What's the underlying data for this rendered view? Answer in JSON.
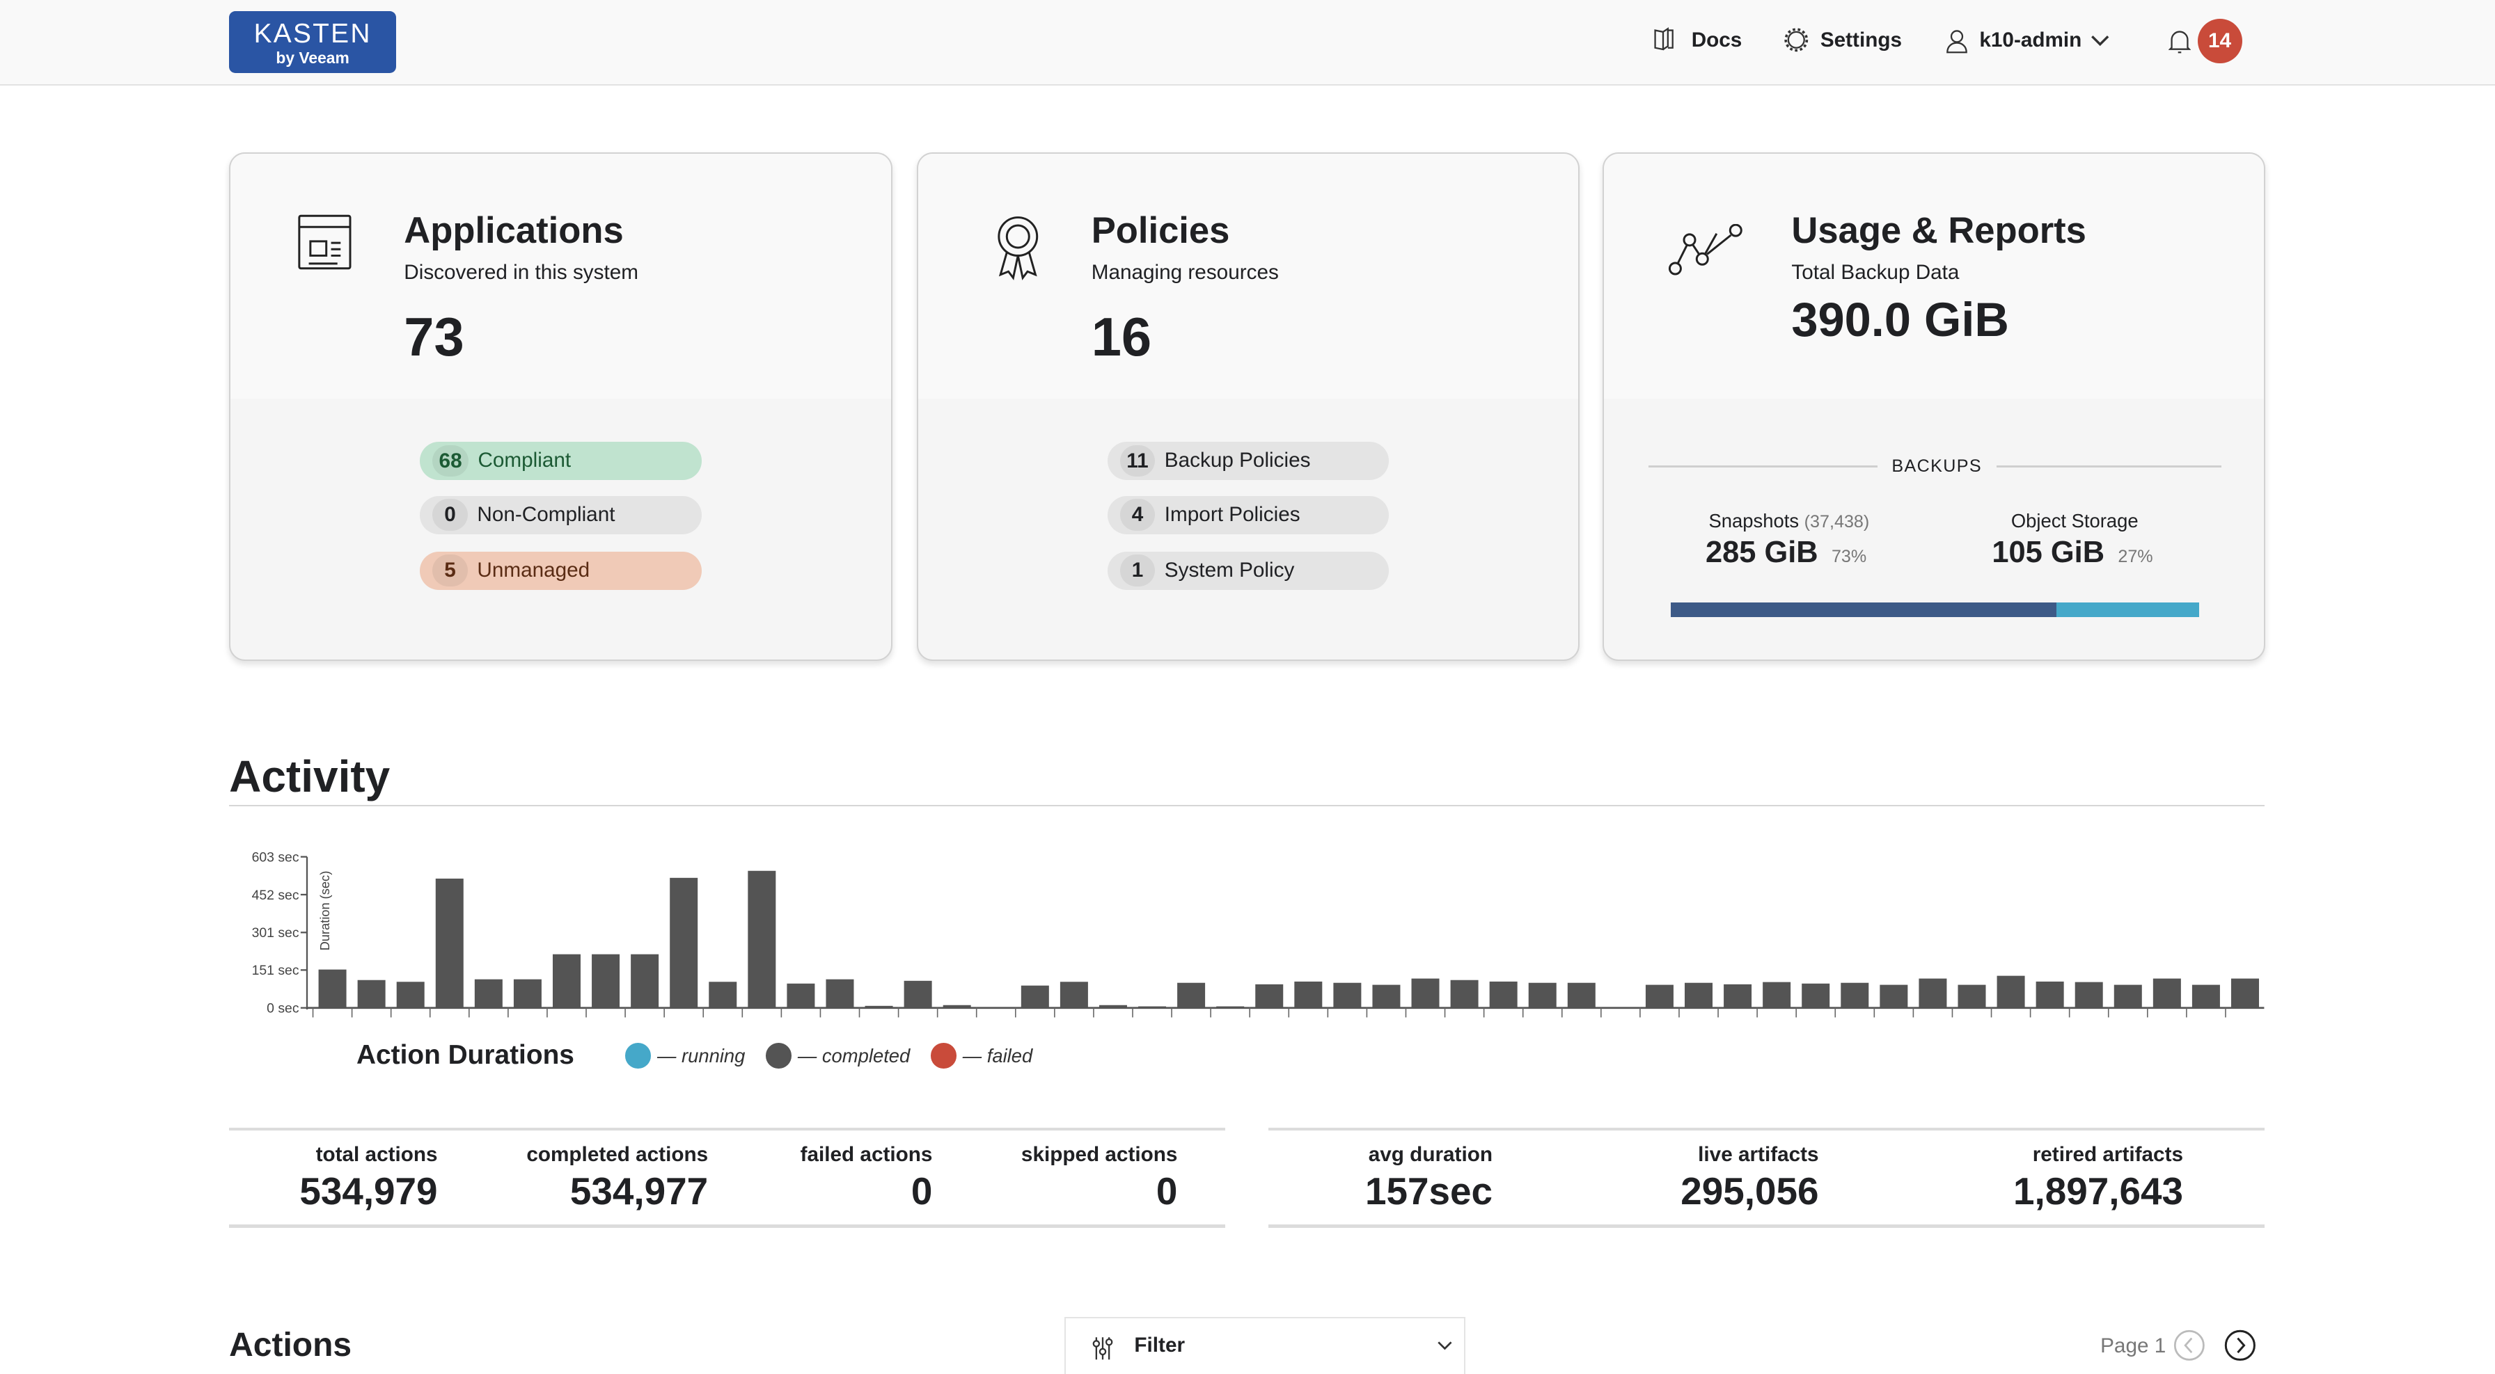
{
  "header": {
    "logo": {
      "brand": "KASTEN",
      "tagline": "by Veeam",
      "color": "#2a55a4"
    },
    "nav": {
      "docs": "Docs",
      "settings": "Settings",
      "user": "k10-admin"
    },
    "notifications": {
      "count": "14",
      "color": "#c94b3a"
    },
    "icons": [
      "book-icon",
      "gear-icon",
      "user-icon",
      "chevron-down-icon",
      "bell-icon"
    ]
  },
  "cards": {
    "applications": {
      "title": "Applications",
      "subtitle": "Discovered in this system",
      "value": "73",
      "pills": [
        {
          "count": "68",
          "label": "Compliant",
          "color": "#c0e3cf"
        },
        {
          "count": "0",
          "label": "Non-Compliant",
          "color": "#e4e4e4"
        },
        {
          "count": "5",
          "label": "Unmanaged",
          "color": "#f0cab7"
        }
      ]
    },
    "policies": {
      "title": "Policies",
      "subtitle": "Managing resources",
      "value": "16",
      "pills": [
        {
          "count": "11",
          "label": "Backup Policies"
        },
        {
          "count": "4",
          "label": "Import Policies"
        },
        {
          "count": "1",
          "label": "System Policy"
        }
      ]
    },
    "usage": {
      "title": "Usage & Reports",
      "subtitle": "Total Backup Data",
      "value": "390.0 GiB",
      "section": "BACKUPS",
      "snapshots": {
        "label": "Snapshots",
        "count": "(37,438)",
        "value": "285 GiB",
        "percent": "73%",
        "fraction": 0.73,
        "color": "#3d5a87"
      },
      "object_storage": {
        "label": "Object Storage",
        "value": "105 GiB",
        "percent": "27%",
        "fraction": 0.27,
        "color": "#45a8c9"
      }
    }
  },
  "activity": {
    "title": "Activity",
    "legend": {
      "title": "Action Durations",
      "running": "— running",
      "completed": "— completed",
      "failed": "— failed",
      "colors": {
        "running": "#45a8c9",
        "completed": "#545454",
        "failed": "#c94b3a"
      }
    },
    "stats_left": [
      {
        "label": "total actions",
        "value": "534,979"
      },
      {
        "label": "completed actions",
        "value": "534,977"
      },
      {
        "label": "failed actions",
        "value": "0"
      },
      {
        "label": "skipped actions",
        "value": "0"
      }
    ],
    "stats_right": [
      {
        "label": "avg duration",
        "value": "157sec"
      },
      {
        "label": "live artifacts",
        "value": "295,056"
      },
      {
        "label": "retired artifacts",
        "value": "1,897,643"
      }
    ]
  },
  "chart_data": {
    "type": "bar",
    "ylabel": "Duration (sec)",
    "ylim": [
      0,
      603
    ],
    "yticks": [
      "0 sec",
      "151 sec",
      "301 sec",
      "452 sec",
      "603 sec"
    ],
    "ytick_values": [
      0,
      151,
      301,
      452,
      603
    ],
    "series": [
      {
        "name": "completed",
        "color": "#545454",
        "values": [
          153,
          111,
          104,
          516,
          114,
          114,
          214,
          214,
          214,
          519,
          104,
          547,
          97,
          114,
          8,
          108,
          11,
          0,
          89,
          104,
          11,
          6,
          100,
          6,
          94,
          105,
          100,
          92,
          117,
          111,
          105,
          100,
          100,
          0,
          92,
          100,
          94,
          103,
          97,
          100,
          92,
          117,
          92,
          128,
          105,
          103,
          92,
          117,
          92,
          117
        ]
      }
    ]
  },
  "actions": {
    "title": "Actions",
    "filter_label": "Filter",
    "page_label": "Page 1"
  }
}
